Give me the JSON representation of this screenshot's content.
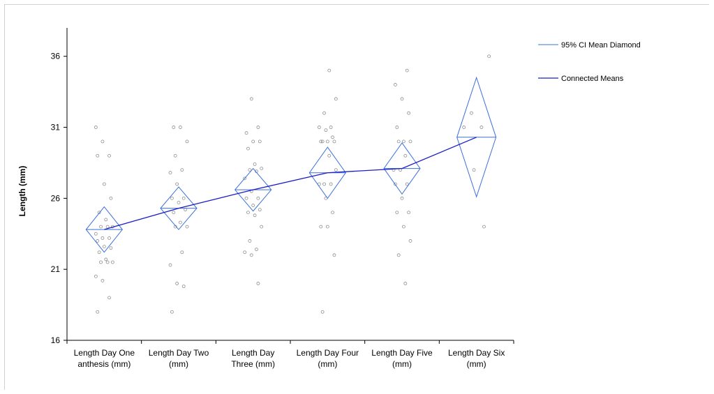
{
  "chart_data": {
    "type": "scatter",
    "ylabel": "Length (mm)",
    "xlabel": "",
    "ylim": [
      16,
      38
    ],
    "yticks": [
      16,
      21,
      26,
      31,
      36
    ],
    "grid": false,
    "legend_position": "top-right",
    "legend": [
      {
        "label": "95% CI Mean Diamond",
        "kind": "diamond",
        "color": "#3a6fdc"
      },
      {
        "label": "Connected Means",
        "kind": "line",
        "color": "#1c1cc8"
      }
    ],
    "colors": {
      "diamond": "#3a6fdc",
      "means_line": "#1c1cc8",
      "points": "#8c8c8c",
      "axis": "#000000"
    },
    "categories": [
      {
        "lines": [
          "Length Day One",
          "anthesis (mm)"
        ]
      },
      {
        "lines": [
          "Length Day Two",
          "(mm)"
        ]
      },
      {
        "lines": [
          "Length Day",
          "Three (mm)"
        ]
      },
      {
        "lines": [
          "Length Day Four",
          "(mm)"
        ]
      },
      {
        "lines": [
          "Length Day Five",
          "(mm)"
        ]
      },
      {
        "lines": [
          "Length Day Six",
          "(mm)"
        ]
      }
    ],
    "groups": [
      {
        "mean": 23.8,
        "ci": [
          22.2,
          25.4
        ],
        "points": [
          31,
          30,
          29,
          29,
          27,
          26,
          25,
          24.5,
          24,
          24,
          24,
          23.5,
          23.2,
          23.2,
          23,
          22.6,
          22.5,
          22.2,
          21.7,
          21.5,
          21.5,
          21.5,
          20.5,
          20.2,
          19,
          18
        ]
      },
      {
        "mean": 25.3,
        "ci": [
          23.8,
          26.8
        ],
        "points": [
          31,
          31,
          30,
          29,
          28,
          27.8,
          27,
          26,
          26,
          25.7,
          25.2,
          25,
          24.3,
          24,
          24,
          22.2,
          21.3,
          20,
          19.8,
          18
        ]
      },
      {
        "mean": 26.6,
        "ci": [
          25.1,
          28.1
        ],
        "points": [
          33,
          31,
          30.6,
          30,
          30,
          29.5,
          28.4,
          28.1,
          28,
          27.9,
          27.4,
          26.5,
          26,
          26,
          25.5,
          25.2,
          25,
          24.8,
          24,
          23,
          22.4,
          22.2,
          22,
          20
        ]
      },
      {
        "mean": 27.8,
        "ci": [
          26.0,
          29.6
        ],
        "points": [
          35,
          33,
          32,
          31,
          31,
          30.8,
          30.3,
          30,
          30,
          30,
          30,
          29,
          28,
          27,
          27,
          27,
          26,
          25,
          24,
          24,
          22,
          18
        ]
      },
      {
        "mean": 28.1,
        "ci": [
          26.3,
          29.9
        ],
        "points": [
          35,
          34,
          33,
          32,
          31,
          30,
          30,
          30,
          29,
          28,
          28,
          27,
          27,
          26,
          25,
          25,
          24,
          23,
          22,
          20
        ]
      },
      {
        "mean": 30.3,
        "ci": [
          26.1,
          34.5
        ],
        "points": [
          36,
          32,
          31,
          31,
          28,
          24
        ]
      }
    ]
  }
}
